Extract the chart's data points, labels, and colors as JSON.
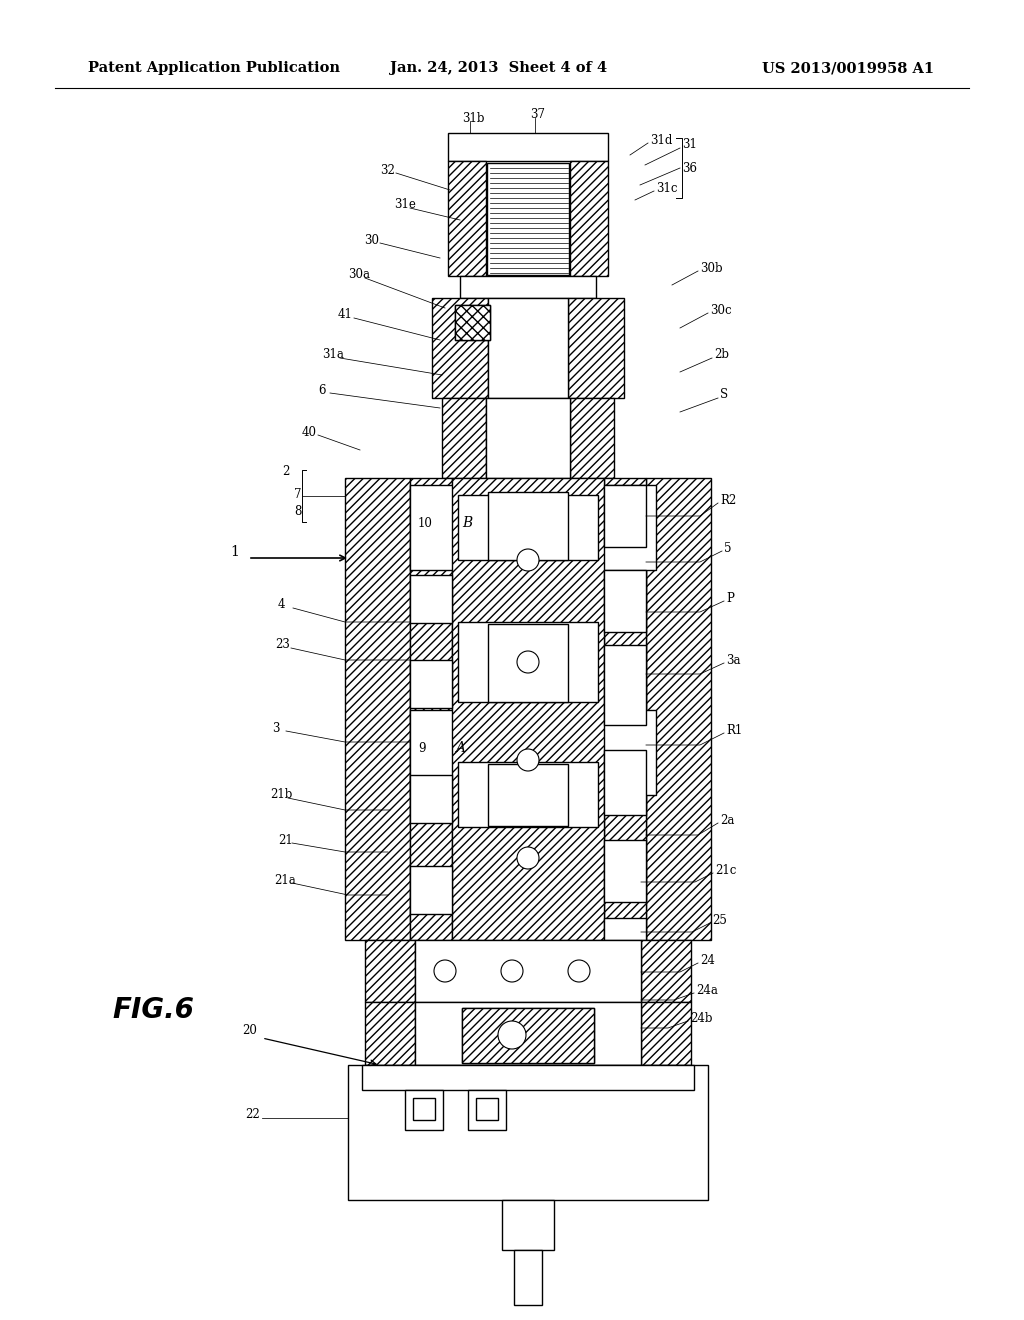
{
  "bg_color": "#ffffff",
  "header_left": "Patent Application Publication",
  "header_center": "Jan. 24, 2013  Sheet 4 of 4",
  "header_right": "US 2013/0019958 A1",
  "fig_label": "FIG.6",
  "header_fontsize": 10.5,
  "figlabel_fontsize": 20,
  "label_fs": 8.5
}
